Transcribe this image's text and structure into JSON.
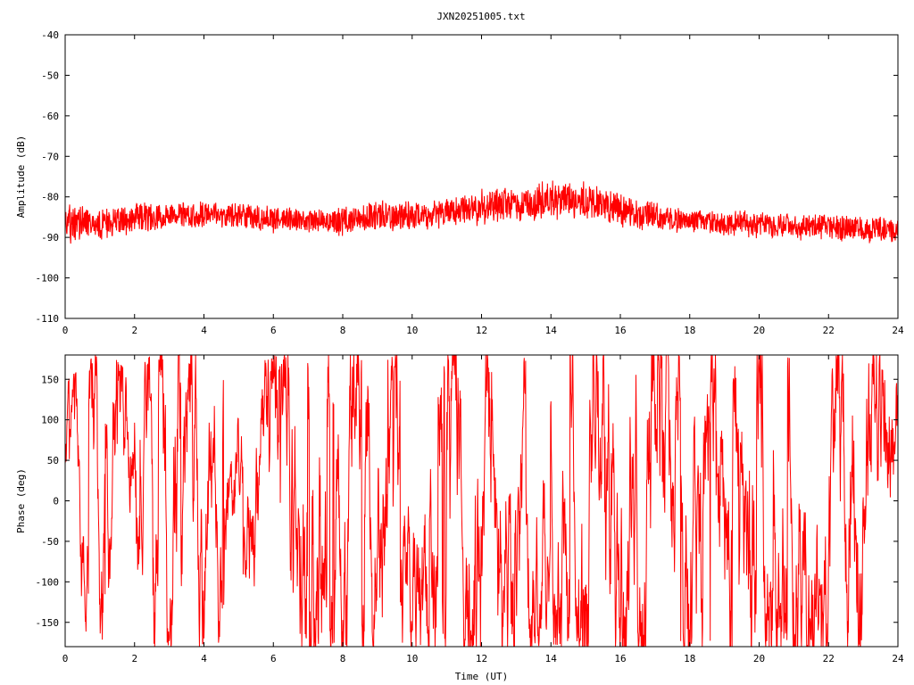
{
  "title": "JXN20251005.txt",
  "colors": {
    "series": "#ff0000",
    "axis": "#000000",
    "background": "#ffffff"
  },
  "chart_data": [
    {
      "type": "line",
      "ylabel": "Amplitude (dB)",
      "xlabel": "",
      "xlim": [
        0,
        24
      ],
      "ylim": [
        -110,
        -40
      ],
      "xticks": [
        "0",
        "2",
        "4",
        "6",
        "8",
        "10",
        "12",
        "14",
        "16",
        "18",
        "20",
        "22",
        "24"
      ],
      "yticks": [
        "-40",
        "-50",
        "-60",
        "-70",
        "-80",
        "-90",
        "-100",
        "-110"
      ],
      "grid": false,
      "series": [
        {
          "x": [
            0,
            0.5,
            1,
            1.5,
            2,
            2.5,
            3,
            3.5,
            4,
            4.5,
            5,
            5.5,
            6,
            6.5,
            7,
            7.5,
            8,
            8.5,
            9,
            9.5,
            10,
            10.5,
            11,
            11.5,
            12,
            12.5,
            13,
            13.5,
            14,
            14.5,
            15,
            15.5,
            16,
            16.5,
            17,
            17.5,
            18,
            18.5,
            19,
            19.5,
            20,
            20.5,
            21,
            21.5,
            22,
            22.5,
            23,
            23.5,
            24
          ],
          "mean": [
            -86.5,
            -86.5,
            -86.5,
            -86,
            -85.5,
            -85,
            -84.5,
            -84.5,
            -84.5,
            -84.5,
            -84.5,
            -85,
            -85.5,
            -85.5,
            -86,
            -86,
            -86,
            -85.5,
            -85,
            -84.5,
            -84.5,
            -84,
            -84,
            -83,
            -82.5,
            -82,
            -82,
            -81.5,
            -81,
            -80.5,
            -81,
            -82,
            -83,
            -84.5,
            -85,
            -85.5,
            -86,
            -86.5,
            -86.5,
            -86.5,
            -87,
            -87,
            -87.5,
            -87.5,
            -87.5,
            -87.5,
            -88,
            -88,
            -88
          ],
          "spread": [
            4.5,
            4,
            3.5,
            3.5,
            3.5,
            3.5,
            3,
            3,
            3,
            3,
            3,
            3,
            3,
            3,
            3,
            3,
            3.5,
            3.5,
            3.5,
            3.5,
            3.5,
            3.5,
            3.5,
            3.5,
            4,
            4,
            4,
            4,
            4.5,
            4.5,
            4.5,
            4,
            4,
            3.5,
            3.5,
            3,
            3,
            3,
            3,
            3,
            3,
            3,
            3,
            3,
            3,
            3,
            3,
            3,
            3
          ]
        }
      ]
    },
    {
      "type": "line",
      "ylabel": "Phase (deg)",
      "xlabel": "Time (UT)",
      "xlim": [
        0,
        24
      ],
      "ylim": [
        -180,
        180
      ],
      "xticks": [
        "0",
        "2",
        "4",
        "6",
        "8",
        "10",
        "12",
        "14",
        "16",
        "18",
        "20",
        "22",
        "24"
      ],
      "yticks": [
        "150",
        "100",
        "50",
        "0",
        "-50",
        "-100",
        "-150"
      ],
      "grid": false,
      "series": [
        {
          "x": [
            0,
            1,
            2,
            3,
            4,
            5,
            6,
            7,
            8,
            9,
            10,
            11,
            12,
            13,
            14,
            15,
            16,
            17,
            18,
            19,
            20,
            21,
            22,
            23,
            24
          ],
          "amplitude": [
            0.45,
            0.8,
            0.6,
            1.0,
            0.85,
            0.55,
            0.8,
            1.0,
            0.85,
            1.0,
            0.8,
            1.0,
            1.0,
            0.9,
            0.75,
            1.0,
            1.0,
            1.0,
            1.0,
            1.0,
            1.0,
            0.85,
            1.0,
            1.0,
            0.7
          ]
        }
      ]
    }
  ]
}
